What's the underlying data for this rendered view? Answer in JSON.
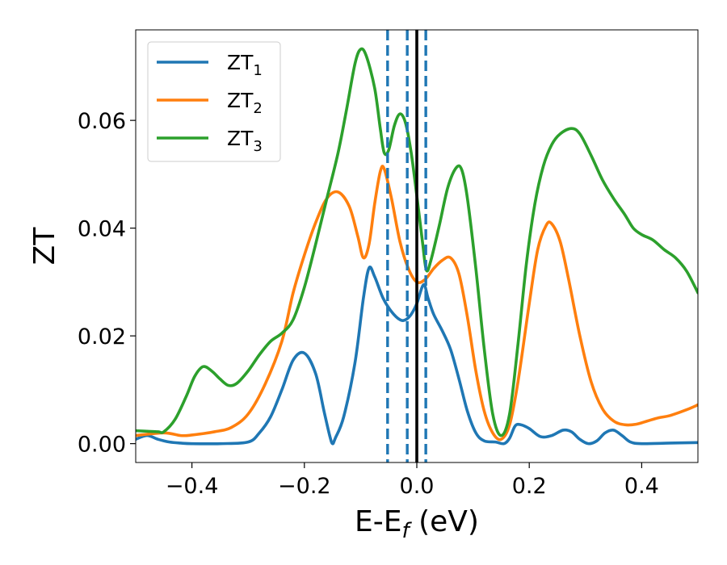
{
  "chart_data": {
    "type": "line",
    "title": "",
    "xlabel": {
      "main": "E-E",
      "subscript": "f",
      "suffix": " (eV)"
    },
    "ylabel": "ZT",
    "xlim": [
      -0.5,
      0.5
    ],
    "ylim": [
      -0.0035,
      0.0768
    ],
    "xticks": [
      -0.4,
      -0.2,
      0.0,
      0.2,
      0.4
    ],
    "xtick_labels": [
      "−0.4",
      "−0.2",
      "0.0",
      "0.2",
      "0.4"
    ],
    "yticks": [
      0.0,
      0.02,
      0.04,
      0.06
    ],
    "ytick_labels": [
      "0.00",
      "0.02",
      "0.04",
      "0.06"
    ],
    "grid": false,
    "legend_position": "top-left",
    "vlines": [
      {
        "x": -0.052,
        "style": "dashed",
        "color": "#1f77b4"
      },
      {
        "x": -0.017,
        "style": "dashed",
        "color": "#1f77b4"
      },
      {
        "x": 0.016,
        "style": "dashed",
        "color": "#1f77b4"
      },
      {
        "x": 0.0,
        "style": "solid",
        "color": "#000000"
      }
    ],
    "series": [
      {
        "name": "ZT",
        "subscript": "1",
        "color": "#1f77b4",
        "points": [
          [
            -0.5,
            0.0008
          ],
          [
            -0.48,
            0.0015
          ],
          [
            -0.46,
            0.0008
          ],
          [
            -0.44,
            0.0003
          ],
          [
            -0.42,
            0.0001
          ],
          [
            -0.4,
            0.0
          ],
          [
            -0.35,
            0.0
          ],
          [
            -0.3,
            0.0003
          ],
          [
            -0.28,
            0.002
          ],
          [
            -0.26,
            0.005
          ],
          [
            -0.24,
            0.01
          ],
          [
            -0.22,
            0.0155
          ],
          [
            -0.2,
            0.0168
          ],
          [
            -0.18,
            0.013
          ],
          [
            -0.165,
            0.006
          ],
          [
            -0.155,
            0.0015
          ],
          [
            -0.15,
            0.0
          ],
          [
            -0.145,
            0.001
          ],
          [
            -0.13,
            0.005
          ],
          [
            -0.11,
            0.015
          ],
          [
            -0.095,
            0.027
          ],
          [
            -0.085,
            0.0326
          ],
          [
            -0.075,
            0.031
          ],
          [
            -0.06,
            0.027
          ],
          [
            -0.045,
            0.0245
          ],
          [
            -0.03,
            0.023
          ],
          [
            -0.02,
            0.023
          ],
          [
            -0.01,
            0.024
          ],
          [
            0.0,
            0.026
          ],
          [
            0.012,
            0.0295
          ],
          [
            0.02,
            0.027
          ],
          [
            0.03,
            0.024
          ],
          [
            0.045,
            0.021
          ],
          [
            0.06,
            0.0175
          ],
          [
            0.075,
            0.012
          ],
          [
            0.09,
            0.006
          ],
          [
            0.105,
            0.002
          ],
          [
            0.12,
            0.0005
          ],
          [
            0.14,
            0.0003
          ],
          [
            0.155,
            0.0
          ],
          [
            0.165,
            0.001
          ],
          [
            0.175,
            0.0033
          ],
          [
            0.185,
            0.0035
          ],
          [
            0.2,
            0.0028
          ],
          [
            0.22,
            0.0013
          ],
          [
            0.24,
            0.0015
          ],
          [
            0.26,
            0.0025
          ],
          [
            0.275,
            0.0022
          ],
          [
            0.29,
            0.0008
          ],
          [
            0.305,
            0.0
          ],
          [
            0.32,
            0.0005
          ],
          [
            0.335,
            0.002
          ],
          [
            0.35,
            0.0025
          ],
          [
            0.365,
            0.0015
          ],
          [
            0.38,
            0.0003
          ],
          [
            0.4,
            0.0
          ],
          [
            0.45,
            0.0001
          ],
          [
            0.5,
            0.0002
          ]
        ]
      },
      {
        "name": "ZT",
        "subscript": "2",
        "color": "#ff7f0e",
        "points": [
          [
            -0.5,
            0.0015
          ],
          [
            -0.45,
            0.002
          ],
          [
            -0.42,
            0.0015
          ],
          [
            -0.4,
            0.0016
          ],
          [
            -0.36,
            0.0022
          ],
          [
            -0.33,
            0.003
          ],
          [
            -0.3,
            0.0055
          ],
          [
            -0.27,
            0.011
          ],
          [
            -0.24,
            0.019
          ],
          [
            -0.22,
            0.028
          ],
          [
            -0.2,
            0.035
          ],
          [
            -0.18,
            0.041
          ],
          [
            -0.16,
            0.0455
          ],
          [
            -0.14,
            0.0467
          ],
          [
            -0.12,
            0.044
          ],
          [
            -0.105,
            0.0385
          ],
          [
            -0.095,
            0.0345
          ],
          [
            -0.085,
            0.037
          ],
          [
            -0.075,
            0.0445
          ],
          [
            -0.065,
            0.0505
          ],
          [
            -0.058,
            0.051
          ],
          [
            -0.045,
            0.0455
          ],
          [
            -0.03,
            0.0375
          ],
          [
            -0.015,
            0.0325
          ],
          [
            0.0,
            0.03
          ],
          [
            0.015,
            0.0305
          ],
          [
            0.03,
            0.0325
          ],
          [
            0.045,
            0.034
          ],
          [
            0.06,
            0.0345
          ],
          [
            0.075,
            0.0315
          ],
          [
            0.09,
            0.0235
          ],
          [
            0.105,
            0.0135
          ],
          [
            0.12,
            0.006
          ],
          [
            0.135,
            0.002
          ],
          [
            0.15,
            0.0008
          ],
          [
            0.165,
            0.0035
          ],
          [
            0.18,
            0.0115
          ],
          [
            0.2,
            0.026
          ],
          [
            0.215,
            0.036
          ],
          [
            0.23,
            0.0405
          ],
          [
            0.24,
            0.0408
          ],
          [
            0.255,
            0.0375
          ],
          [
            0.27,
            0.0305
          ],
          [
            0.29,
            0.02
          ],
          [
            0.31,
            0.0115
          ],
          [
            0.33,
            0.0065
          ],
          [
            0.35,
            0.0042
          ],
          [
            0.37,
            0.0035
          ],
          [
            0.39,
            0.0036
          ],
          [
            0.41,
            0.0042
          ],
          [
            0.43,
            0.0048
          ],
          [
            0.45,
            0.0052
          ],
          [
            0.48,
            0.0063
          ],
          [
            0.5,
            0.0072
          ]
        ]
      },
      {
        "name": "ZT",
        "subscript": "3",
        "color": "#2ca02c",
        "points": [
          [
            -0.5,
            0.0024
          ],
          [
            -0.48,
            0.0023
          ],
          [
            -0.46,
            0.0022
          ],
          [
            -0.45,
            0.0022
          ],
          [
            -0.43,
            0.0045
          ],
          [
            -0.41,
            0.0088
          ],
          [
            -0.395,
            0.0125
          ],
          [
            -0.38,
            0.0143
          ],
          [
            -0.365,
            0.0135
          ],
          [
            -0.35,
            0.012
          ],
          [
            -0.335,
            0.0108
          ],
          [
            -0.32,
            0.0112
          ],
          [
            -0.3,
            0.0135
          ],
          [
            -0.28,
            0.0165
          ],
          [
            -0.26,
            0.019
          ],
          [
            -0.24,
            0.0205
          ],
          [
            -0.22,
            0.023
          ],
          [
            -0.2,
            0.029
          ],
          [
            -0.18,
            0.037
          ],
          [
            -0.16,
            0.0455
          ],
          [
            -0.14,
            0.054
          ],
          [
            -0.125,
            0.062
          ],
          [
            -0.11,
            0.0705
          ],
          [
            -0.1,
            0.0732
          ],
          [
            -0.09,
            0.072
          ],
          [
            -0.075,
            0.066
          ],
          [
            -0.065,
            0.0585
          ],
          [
            -0.058,
            0.054
          ],
          [
            -0.05,
            0.0545
          ],
          [
            -0.04,
            0.059
          ],
          [
            -0.03,
            0.0612
          ],
          [
            -0.02,
            0.0595
          ],
          [
            -0.01,
            0.054
          ],
          [
            0.0,
            0.046
          ],
          [
            0.01,
            0.0375
          ],
          [
            0.017,
            0.0322
          ],
          [
            0.025,
            0.034
          ],
          [
            0.04,
            0.0405
          ],
          [
            0.055,
            0.0475
          ],
          [
            0.07,
            0.0512
          ],
          [
            0.08,
            0.0508
          ],
          [
            0.09,
            0.0455
          ],
          [
            0.105,
            0.0325
          ],
          [
            0.12,
            0.0175
          ],
          [
            0.135,
            0.0055
          ],
          [
            0.15,
            0.0015
          ],
          [
            0.165,
            0.0055
          ],
          [
            0.18,
            0.0185
          ],
          [
            0.195,
            0.0335
          ],
          [
            0.21,
            0.0445
          ],
          [
            0.225,
            0.0515
          ],
          [
            0.24,
            0.0555
          ],
          [
            0.255,
            0.0575
          ],
          [
            0.275,
            0.0585
          ],
          [
            0.29,
            0.0575
          ],
          [
            0.31,
            0.0535
          ],
          [
            0.33,
            0.049
          ],
          [
            0.35,
            0.0455
          ],
          [
            0.37,
            0.0425
          ],
          [
            0.385,
            0.04
          ],
          [
            0.4,
            0.0388
          ],
          [
            0.42,
            0.0378
          ],
          [
            0.44,
            0.036
          ],
          [
            0.46,
            0.0345
          ],
          [
            0.48,
            0.032
          ],
          [
            0.5,
            0.028
          ]
        ]
      }
    ]
  }
}
